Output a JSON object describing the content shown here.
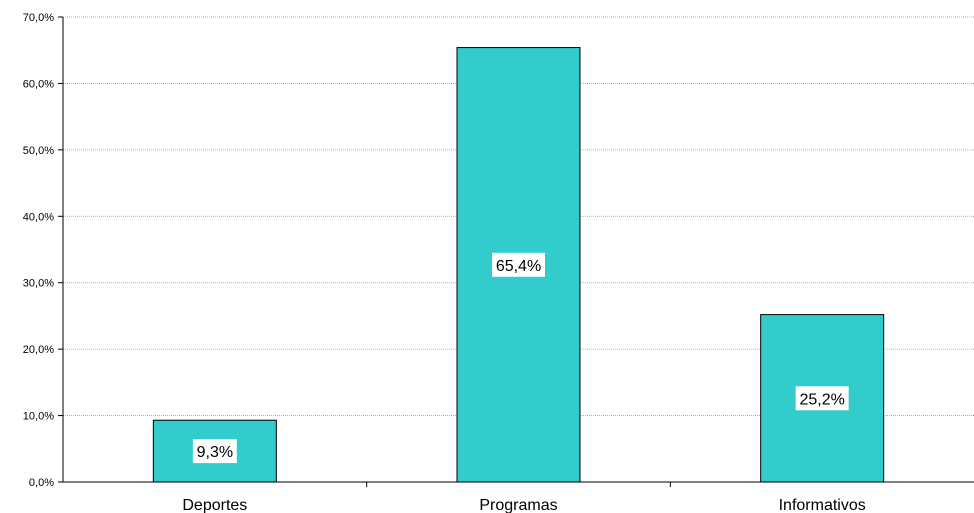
{
  "chart_data": {
    "type": "bar",
    "categories": [
      "Deportes",
      "Programas",
      "Informativos"
    ],
    "values": [
      9.3,
      65.4,
      25.2
    ],
    "data_labels": [
      "9,3%",
      "65,4%",
      "25,2%"
    ],
    "yticks": [
      "0,0%",
      "10,0%",
      "20,0%",
      "30,0%",
      "40,0%",
      "50,0%",
      "60,0%",
      "70,0%"
    ],
    "ylim": [
      0,
      70
    ],
    "grid": true,
    "bar_color": "#33cccc",
    "bar_edge_color": "#000000",
    "grid_color": "#a0a0a0"
  }
}
